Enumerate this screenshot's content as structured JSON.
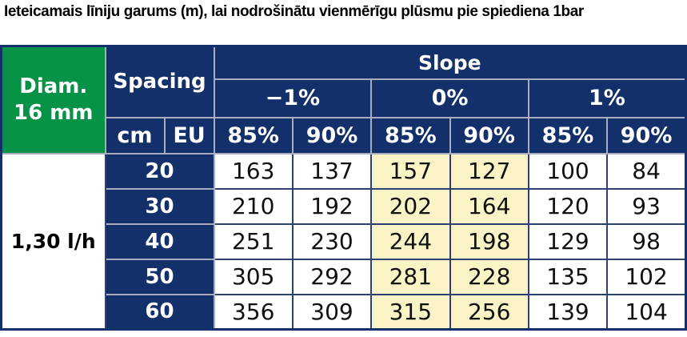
{
  "chart_data": {
    "type": "table",
    "title": "Ieteicamais līniju garums (m), lai nodrošinātu vienmērīgu plūsmu pie spiediena 1bar",
    "corner": {
      "diameter_line1": "Diam.",
      "diameter_line2": "16 mm",
      "spacing": "Spacing",
      "cm": "cm",
      "eu": "EU"
    },
    "slope": {
      "label": "Slope",
      "groups": [
        "−1%",
        "0%",
        "1%"
      ],
      "subcolumns": [
        "85%",
        "90%",
        "85%",
        "90%",
        "85%",
        "90%"
      ]
    },
    "flow_label": "1,30 l/h",
    "rows": [
      {
        "spacing": "20",
        "values": [
          "163",
          "137",
          "157",
          "127",
          "100",
          "84"
        ]
      },
      {
        "spacing": "30",
        "values": [
          "210",
          "192",
          "202",
          "164",
          "120",
          "93"
        ]
      },
      {
        "spacing": "40",
        "values": [
          "251",
          "230",
          "244",
          "198",
          "129",
          "98"
        ]
      },
      {
        "spacing": "50",
        "values": [
          "305",
          "292",
          "281",
          "228",
          "135",
          "102"
        ]
      },
      {
        "spacing": "60",
        "values": [
          "356",
          "309",
          "315",
          "256",
          "139",
          "104"
        ]
      }
    ],
    "highlighted_columns": [
      2,
      3
    ],
    "colors": {
      "header_green": "#069347",
      "header_navy": "#13306B",
      "highlight_cream": "#FAF3C6",
      "border_light": "#A6AEBF",
      "border_dark": "#2E4173",
      "text_dark": "#101010"
    }
  }
}
